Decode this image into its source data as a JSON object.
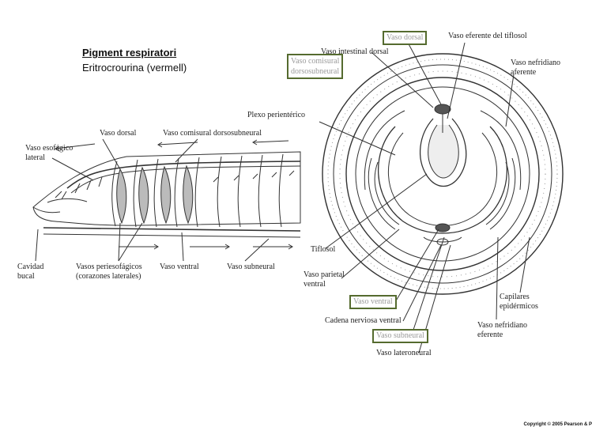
{
  "slide": {
    "title": "Pigment respiratori",
    "subtitle": "Eritrocrourina (vermell)"
  },
  "left_diagram": {
    "labels": {
      "vaso_dorsal": "Vaso dorsal",
      "vaso_comisural": "Vaso comisural dorsosubneural",
      "vaso_esofagico_1": "Vaso esofágico",
      "vaso_esofagico_2": "lateral",
      "cavidad_1": "Cavidad",
      "cavidad_2": "bucal",
      "vasos_perie_1": "Vasos periesofágicos",
      "vasos_perie_2": "(corazones laterales)",
      "vaso_ventral": "Vaso ventral",
      "vaso_subneural": "Vaso subneural"
    }
  },
  "right_diagram": {
    "labels": {
      "vaso_intestinal_dorsal": "Vaso intestinal dorsal",
      "vaso_eferente_tiflosol": "Vaso eferente del tiflosol",
      "vaso_nefridiano_aferente_1": "Vaso nefridiano",
      "vaso_nefridiano_aferente_2": "aferente",
      "plexo_perienterico": "Plexo perientérico",
      "tiflosol": "Tiflosol",
      "vaso_parietal_1": "Vaso parietal",
      "vaso_parietal_2": "ventral",
      "cadena_nerviosa": "Cadena nerviosa ventral",
      "vaso_lateroneural": "Vaso lateroneural",
      "capilares_1": "Capilares",
      "capilares_2": "epidérmicos",
      "vaso_nefridiano_eferente_1": "Vaso nefridiano",
      "vaso_nefridiano_eferente_2": "eferente"
    },
    "highlight_boxes": {
      "vaso_dorsal": "Vaso dorsal",
      "vaso_comisural_1": "Vaso comisural",
      "vaso_comisural_2": "dorsosubneural",
      "vaso_ventral": "Vaso ventral",
      "vaso_subneural": "Vaso subneural"
    },
    "box_color": "#556b2f"
  },
  "footer": {
    "copyright": "Copyright © 2005 Pearson & P"
  }
}
